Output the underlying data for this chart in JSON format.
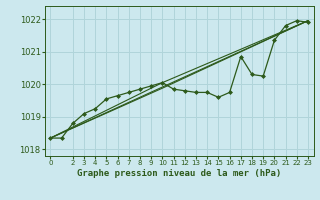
{
  "xlabel": "Graphe pression niveau de la mer (hPa)",
  "background_color": "#cce8ee",
  "grid_color": "#b0d4da",
  "line_color": "#2d5a1b",
  "marker_color": "#2d5a1b",
  "ylim": [
    1017.8,
    1022.4
  ],
  "xlim": [
    -0.5,
    23.5
  ],
  "yticks": [
    1018,
    1019,
    1020,
    1021,
    1022
  ],
  "xticks": [
    0,
    2,
    3,
    4,
    5,
    6,
    7,
    8,
    9,
    10,
    11,
    12,
    13,
    14,
    15,
    16,
    17,
    18,
    19,
    20,
    21,
    22,
    23
  ],
  "main_x": [
    0,
    1,
    2,
    3,
    4,
    5,
    6,
    7,
    8,
    9,
    10,
    11,
    12,
    13,
    14,
    15,
    16,
    17,
    18,
    19,
    20,
    21,
    22,
    23
  ],
  "main_y": [
    1018.35,
    1018.35,
    1018.8,
    1019.1,
    1019.25,
    1019.55,
    1019.65,
    1019.75,
    1019.85,
    1019.95,
    1020.05,
    1019.85,
    1019.8,
    1019.75,
    1019.75,
    1019.6,
    1019.75,
    1020.85,
    1020.3,
    1020.25,
    1021.35,
    1021.8,
    1021.95,
    1021.9
  ],
  "line1_x": [
    0,
    23
  ],
  "line1_y": [
    1018.35,
    1021.95
  ],
  "line2_x": [
    0,
    10,
    23
  ],
  "line2_y": [
    1018.35,
    1020.05,
    1021.95
  ],
  "line3_x": [
    0,
    10,
    23
  ],
  "line3_y": [
    1018.35,
    1019.88,
    1021.95
  ]
}
